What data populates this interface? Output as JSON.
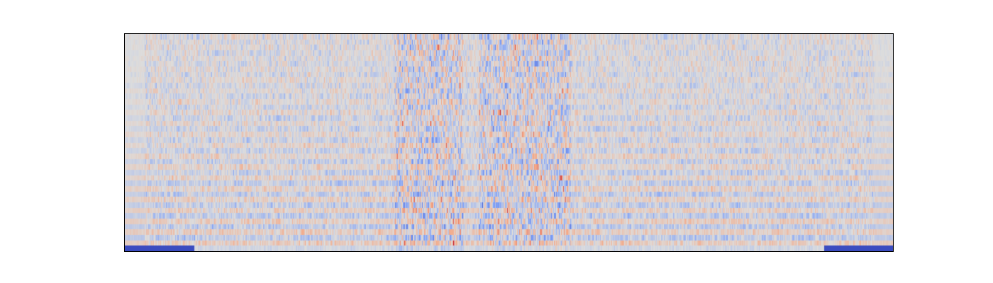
{
  "chart_data": {
    "type": "heatmap",
    "title": "",
    "xlabel": "",
    "ylabel": "",
    "axes_visible": false,
    "grid": false,
    "colormap": "coolwarm",
    "colorbar": false,
    "n_rows": 40,
    "n_cols": 1083,
    "value_range": [
      -1,
      1
    ],
    "colors": {
      "cold": "#3b4cc0",
      "neutral": "#dddddd",
      "warm": "#b40426",
      "frame": "#000000",
      "background": "#ffffff"
    },
    "notes_visible_structure": {
      "bottom_row_cold_edges": true,
      "high_variance_column_bands": [
        [
          0.35,
          0.44
        ],
        [
          0.46,
          0.58
        ]
      ],
      "left_right_edges_smooth": true
    }
  }
}
